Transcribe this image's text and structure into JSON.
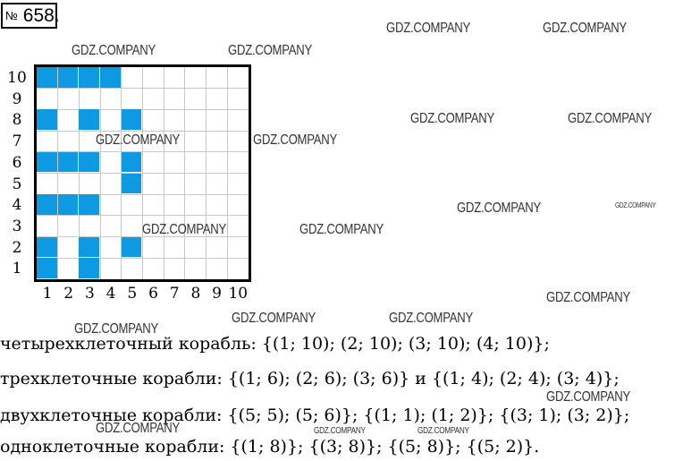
{
  "task_number": {
    "symbol": "№",
    "value": "658."
  },
  "grid": {
    "columns": 10,
    "rows": 10,
    "ship_color": "#0e9ae3",
    "x_labels": [
      "1",
      "2",
      "3",
      "4",
      "5",
      "6",
      "7",
      "8",
      "9",
      "10"
    ],
    "y_labels": [
      "10",
      "9",
      "8",
      "7",
      "6",
      "5",
      "4",
      "3",
      "2",
      "1"
    ],
    "filled_cells": [
      [
        1,
        10
      ],
      [
        2,
        10
      ],
      [
        3,
        10
      ],
      [
        4,
        10
      ],
      [
        1,
        8
      ],
      [
        3,
        8
      ],
      [
        5,
        8
      ],
      [
        1,
        6
      ],
      [
        2,
        6
      ],
      [
        3,
        6
      ],
      [
        5,
        6
      ],
      [
        5,
        5
      ],
      [
        1,
        4
      ],
      [
        2,
        4
      ],
      [
        3,
        4
      ],
      [
        1,
        2
      ],
      [
        3,
        2
      ],
      [
        5,
        2
      ],
      [
        1,
        1
      ],
      [
        3,
        1
      ]
    ]
  },
  "answers": [
    "четырехклеточный корабль:  {(1; 10); (2; 10); (3; 10); (4; 10)};",
    "трехклеточные корабли:  {(1; 6); (2; 6); (3; 6)} и {(1; 4); (2; 4); (3; 4)};",
    "двухклеточные корабли:  {(5; 5); (5; 6)};  {(1; 1); (1; 2)};  {(3; 1); (3; 2)};",
    "одноклеточные корабли:  {(1; 8)};  {(3; 8)};  {(5; 8)};  {(5; 2)}."
  ],
  "watermark": "GDZ.COMPANY"
}
